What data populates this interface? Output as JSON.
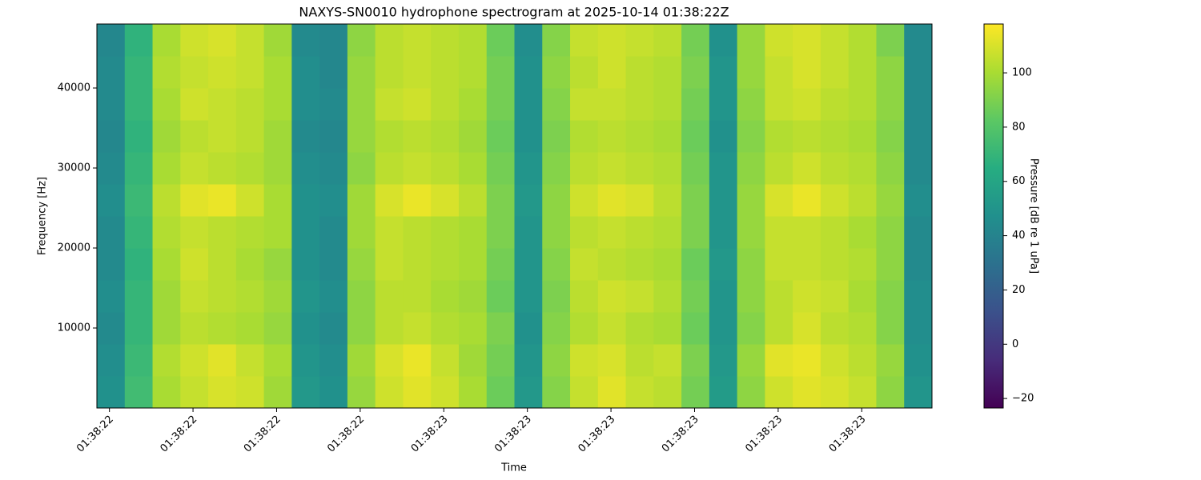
{
  "chart_data": {
    "type": "heatmap",
    "title": "NAXYS-SN0010 hydrophone spectrogram at 2025-10-14 01:38:22Z",
    "x_label": "Time",
    "y_label": "Frequency [Hz]",
    "colorbar_label": "Pressure [dB re 1 uPa]",
    "colormap": "viridis",
    "xlim": [
      22.585,
      23.584
    ],
    "xticks": [
      {
        "value": 22.6,
        "label": "01:38:22"
      },
      {
        "value": 22.7,
        "label": "01:38:22"
      },
      {
        "value": 22.8,
        "label": "01:38:22"
      },
      {
        "value": 22.9,
        "label": "01:38:22"
      },
      {
        "value": 23.0,
        "label": "01:38:23"
      },
      {
        "value": 23.1,
        "label": "01:38:23"
      },
      {
        "value": 23.2,
        "label": "01:38:23"
      },
      {
        "value": 23.3,
        "label": "01:38:23"
      },
      {
        "value": 23.4,
        "label": "01:38:23"
      },
      {
        "value": 23.5,
        "label": "01:38:23"
      }
    ],
    "ylim": [
      0,
      48000
    ],
    "yticks": [
      10000,
      20000,
      30000,
      40000
    ],
    "clim": [
      -23.5,
      118
    ],
    "cticks": [
      {
        "value": -20,
        "label": "−20"
      },
      0,
      20,
      40,
      60,
      80,
      100
    ],
    "z": [
      [
        48,
        74,
        100,
        106,
        110,
        108,
        98,
        52,
        48,
        96,
        108,
        112,
        108,
        100,
        86,
        52,
        92,
        106,
        112,
        106,
        104,
        88,
        54,
        94,
        108,
        112,
        110,
        106,
        94,
        50
      ],
      [
        46,
        72,
        102,
        108,
        112,
        106,
        100,
        50,
        46,
        98,
        110,
        114,
        106,
        98,
        88,
        50,
        94,
        108,
        110,
        104,
        106,
        90,
        52,
        96,
        112,
        114,
        108,
        104,
        96,
        48
      ],
      [
        44,
        70,
        98,
        104,
        102,
        100,
        96,
        48,
        44,
        94,
        104,
        106,
        102,
        100,
        90,
        48,
        92,
        102,
        106,
        102,
        100,
        86,
        50,
        92,
        104,
        110,
        104,
        102,
        92,
        46
      ],
      [
        46,
        70,
        98,
        106,
        104,
        102,
        98,
        50,
        46,
        94,
        104,
        104,
        100,
        98,
        86,
        50,
        90,
        104,
        108,
        106,
        102,
        88,
        50,
        94,
        104,
        108,
        106,
        100,
        92,
        46
      ],
      [
        44,
        68,
        100,
        108,
        104,
        100,
        96,
        48,
        44,
        96,
        106,
        104,
        102,
        100,
        88,
        50,
        92,
        106,
        104,
        102,
        100,
        86,
        52,
        94,
        106,
        106,
        104,
        102,
        94,
        44
      ],
      [
        44,
        70,
        102,
        106,
        104,
        102,
        100,
        48,
        44,
        98,
        106,
        104,
        102,
        100,
        90,
        50,
        94,
        104,
        106,
        104,
        102,
        90,
        50,
        96,
        106,
        106,
        104,
        100,
        94,
        44
      ],
      [
        46,
        72,
        104,
        112,
        114,
        108,
        100,
        48,
        46,
        98,
        110,
        114,
        110,
        104,
        90,
        52,
        94,
        108,
        112,
        110,
        104,
        90,
        50,
        96,
        110,
        114,
        108,
        104,
        96,
        46
      ],
      [
        44,
        70,
        100,
        106,
        104,
        102,
        98,
        46,
        44,
        94,
        104,
        106,
        104,
        100,
        88,
        50,
        92,
        104,
        106,
        104,
        102,
        88,
        50,
        94,
        104,
        108,
        104,
        102,
        94,
        44
      ],
      [
        42,
        68,
        98,
        104,
        106,
        104,
        98,
        44,
        42,
        96,
        102,
        104,
        102,
        98,
        86,
        48,
        90,
        102,
        104,
        102,
        100,
        86,
        48,
        92,
        102,
        104,
        102,
        100,
        92,
        44
      ],
      [
        44,
        70,
        100,
        108,
        106,
        104,
        100,
        46,
        44,
        96,
        106,
        108,
        104,
        100,
        88,
        48,
        92,
        106,
        106,
        104,
        102,
        88,
        50,
        94,
        106,
        108,
        104,
        102,
        94,
        44
      ],
      [
        44,
        70,
        102,
        106,
        108,
        106,
        100,
        46,
        42,
        96,
        104,
        106,
        104,
        102,
        88,
        48,
        94,
        104,
        108,
        104,
        102,
        90,
        50,
        96,
        106,
        110,
        106,
        102,
        94,
        44
      ],
      [
        42,
        68,
        100,
        108,
        110,
        106,
        98,
        44,
        42,
        94,
        104,
        106,
        104,
        102,
        86,
        46,
        92,
        106,
        108,
        106,
        104,
        88,
        48,
        96,
        108,
        110,
        106,
        102,
        90,
        44
      ]
    ]
  }
}
